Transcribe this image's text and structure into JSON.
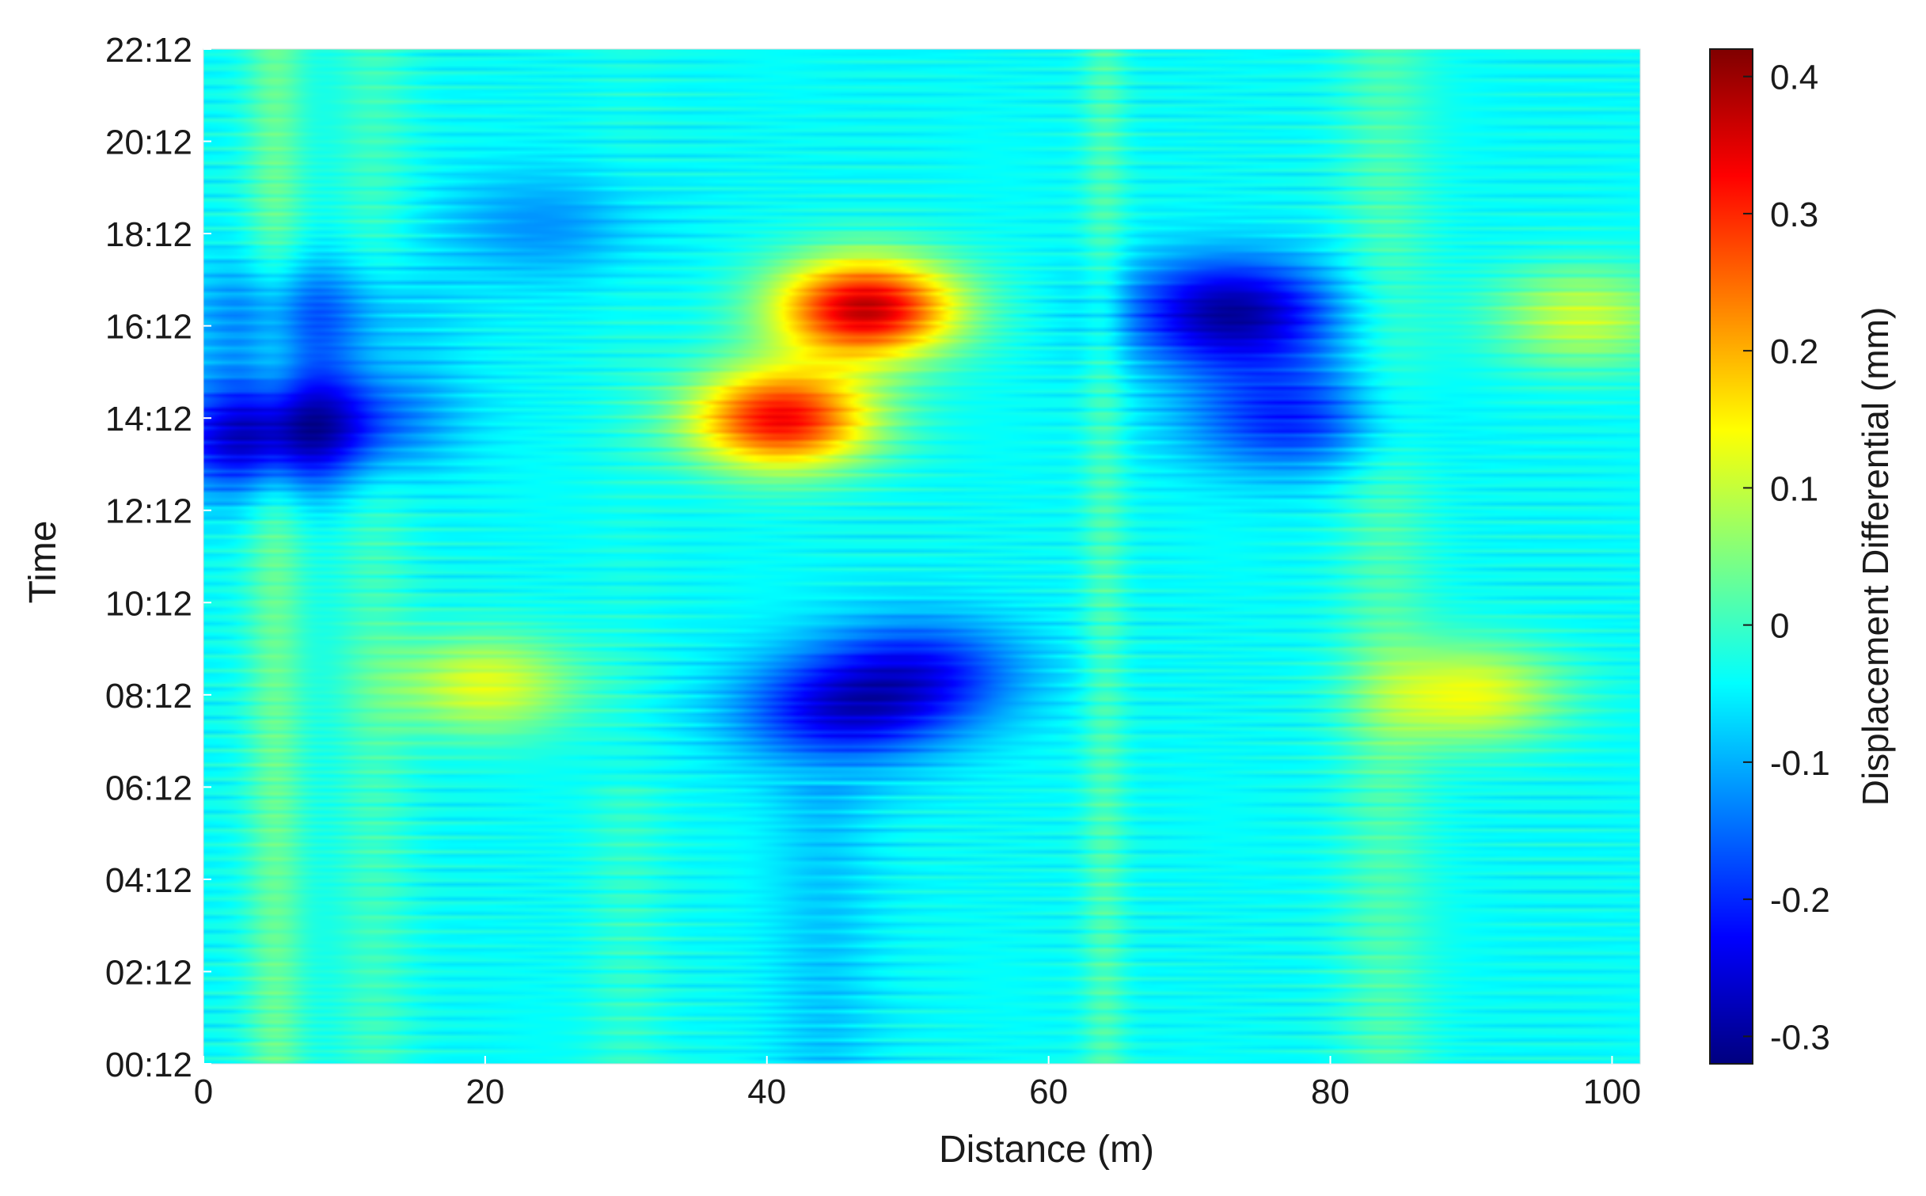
{
  "chart_data": {
    "type": "heatmap",
    "title": "",
    "xlabel": "Distance (m)",
    "ylabel": "Time",
    "xlim": [
      0,
      102
    ],
    "ylim_labels": [
      "00:12",
      "22:12"
    ],
    "x_ticks": [
      0,
      20,
      40,
      60,
      80,
      100
    ],
    "y_ticks": [
      "00:12",
      "02:12",
      "04:12",
      "06:12",
      "08:12",
      "10:12",
      "12:12",
      "14:12",
      "16:12",
      "18:12",
      "20:12",
      "22:12"
    ],
    "colorbar": {
      "label": "Displacement Differential (mm)",
      "range": [
        -0.32,
        0.42
      ],
      "ticks": [
        "0.4",
        "0.3",
        "0.2",
        "0.1",
        "0",
        "-0.1",
        "-0.2",
        "-0.3"
      ],
      "colormap": "jet"
    },
    "grid": false,
    "features": [
      {
        "distance": 4,
        "time_hours": 13.5,
        "value": -0.24
      },
      {
        "distance": 9,
        "time_hours": 14.1,
        "value": -0.2
      },
      {
        "distance": 7,
        "time_hours": 16.3,
        "value": -0.18
      },
      {
        "distance": 24,
        "time_hours": 18.2,
        "value": -0.12
      },
      {
        "distance": 41,
        "time_hours": 14.0,
        "value": 0.33
      },
      {
        "distance": 47,
        "time_hours": 16.4,
        "value": 0.37
      },
      {
        "distance": 45,
        "time_hours": 7.6,
        "value": -0.22
      },
      {
        "distance": 51,
        "time_hours": 8.5,
        "value": -0.2
      },
      {
        "distance": 73,
        "time_hours": 16.3,
        "value": -0.3
      },
      {
        "distance": 77,
        "time_hours": 14.0,
        "value": -0.2
      },
      {
        "distance": 20,
        "time_hours": 8.2,
        "value": 0.12
      },
      {
        "distance": 90,
        "time_hours": 8.0,
        "value": 0.13
      },
      {
        "distance": 98,
        "time_hours": 16.2,
        "value": 0.1
      }
    ]
  }
}
